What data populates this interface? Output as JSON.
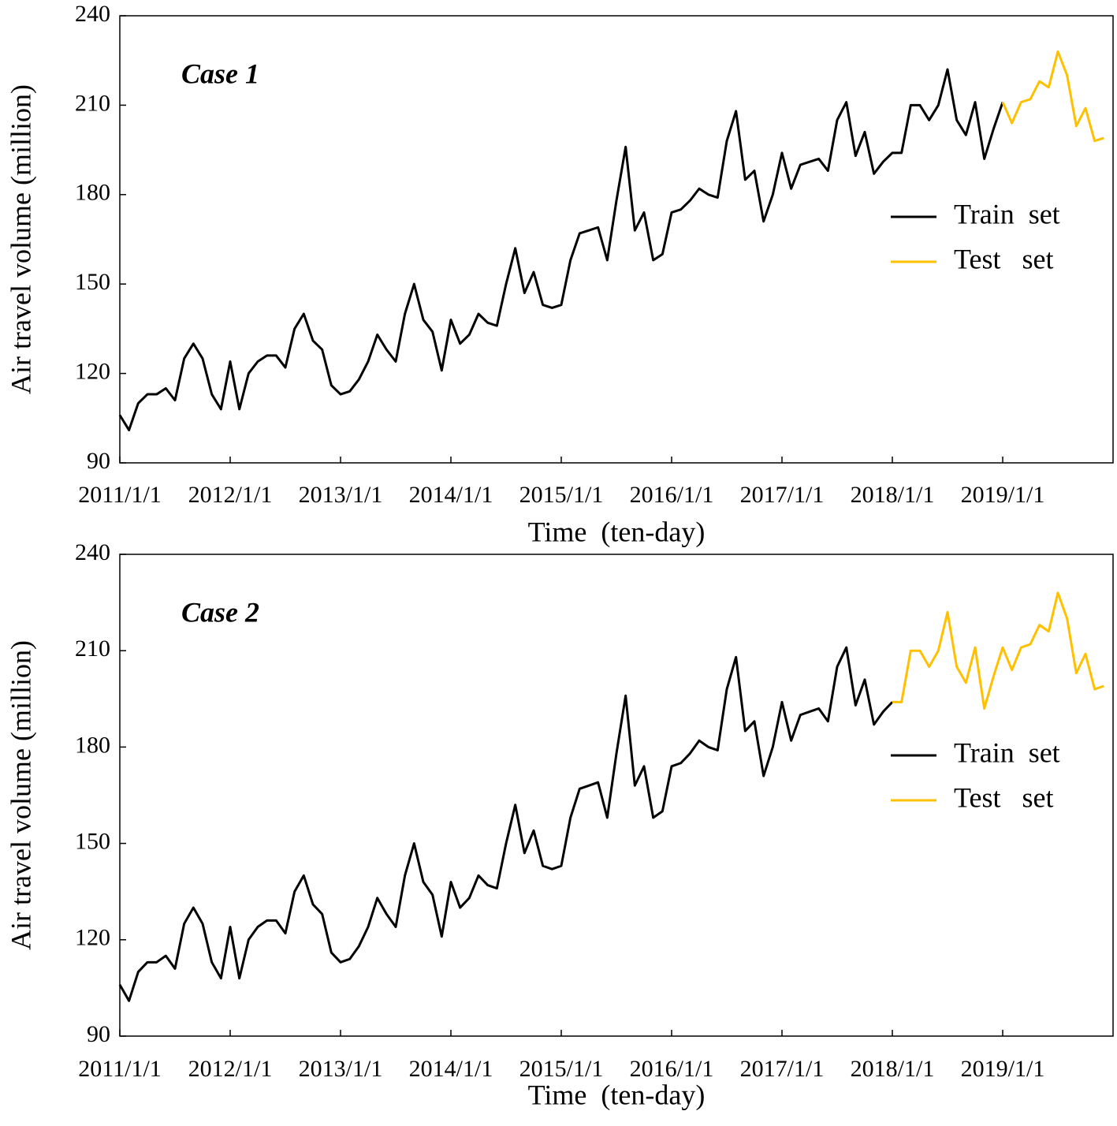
{
  "chart_data": [
    {
      "type": "line",
      "annotation": "Case 1",
      "xlabel": "Time  (ten-day)",
      "ylabel": "Air travel volume (million)",
      "xlim": [
        0,
        324
      ],
      "ylim": [
        90,
        240
      ],
      "yticks": [
        90,
        120,
        150,
        180,
        210,
        240
      ],
      "xticks": [
        {
          "value": 0,
          "label": "2011/1/1"
        },
        {
          "value": 36,
          "label": "2012/1/1"
        },
        {
          "value": 72,
          "label": "2013/1/1"
        },
        {
          "value": 108,
          "label": "2014/1/1"
        },
        {
          "value": 144,
          "label": "2015/1/1"
        },
        {
          "value": 180,
          "label": "2016/1/1"
        },
        {
          "value": 216,
          "label": "2017/1/1"
        },
        {
          "value": 252,
          "label": "2018/1/1"
        },
        {
          "value": 288,
          "label": "2019/1/1"
        }
      ],
      "legend": "right",
      "x": [
        0,
        3,
        6,
        9,
        12,
        15,
        18,
        21,
        24,
        27,
        30,
        33,
        36,
        39,
        42,
        45,
        48,
        51,
        54,
        57,
        60,
        63,
        66,
        69,
        72,
        75,
        78,
        81,
        84,
        87,
        90,
        93,
        96,
        99,
        102,
        105,
        108,
        111,
        114,
        117,
        120,
        123,
        126,
        129,
        132,
        135,
        138,
        141,
        144,
        147,
        150,
        153,
        156,
        159,
        162,
        165,
        168,
        171,
        174,
        177,
        180,
        183,
        186,
        189,
        192,
        195,
        198,
        201,
        204,
        207,
        210,
        213,
        216,
        219,
        222,
        225,
        228,
        231,
        234,
        237,
        240,
        243,
        246,
        249,
        252,
        255,
        258,
        261,
        264,
        267,
        270,
        273,
        276,
        279,
        282,
        285,
        288,
        291,
        294,
        297,
        300,
        303,
        306,
        309,
        312,
        315,
        318,
        321
      ],
      "series": [
        {
          "name": "Train  set",
          "color": "#000000",
          "values": [
            106,
            101,
            110,
            113,
            113,
            115,
            111,
            125,
            130,
            125,
            113,
            108,
            124,
            108,
            120,
            124,
            126,
            126,
            122,
            135,
            140,
            131,
            128,
            116,
            113,
            114,
            118,
            124,
            133,
            128,
            124,
            140,
            150,
            138,
            134,
            121,
            138,
            130,
            133,
            140,
            137,
            136,
            150,
            162,
            147,
            154,
            143,
            142,
            143,
            158,
            167,
            168,
            169,
            158,
            178,
            196,
            168,
            174,
            158,
            160,
            174,
            175,
            178,
            182,
            180,
            179,
            198,
            208,
            185,
            188,
            171,
            180,
            194,
            182,
            190,
            191,
            192,
            188,
            205,
            211,
            193,
            201,
            187,
            191,
            194,
            194,
            210,
            210,
            205,
            210,
            222,
            205,
            200,
            211,
            192,
            202,
            211,
            null,
            null,
            null,
            null,
            null,
            null,
            null,
            null,
            null,
            null,
            null
          ]
        },
        {
          "name": "Test   set",
          "color": "#ffc000",
          "values": [
            null,
            null,
            null,
            null,
            null,
            null,
            null,
            null,
            null,
            null,
            null,
            null,
            null,
            null,
            null,
            null,
            null,
            null,
            null,
            null,
            null,
            null,
            null,
            null,
            null,
            null,
            null,
            null,
            null,
            null,
            null,
            null,
            null,
            null,
            null,
            null,
            null,
            null,
            null,
            null,
            null,
            null,
            null,
            null,
            null,
            null,
            null,
            null,
            null,
            null,
            null,
            null,
            null,
            null,
            null,
            null,
            null,
            null,
            null,
            null,
            null,
            null,
            null,
            null,
            null,
            null,
            null,
            null,
            null,
            null,
            null,
            null,
            null,
            null,
            null,
            null,
            null,
            null,
            null,
            null,
            null,
            null,
            null,
            null,
            null,
            null,
            null,
            null,
            null,
            null,
            null,
            null,
            null,
            null,
            null,
            null,
            211,
            204,
            211,
            212,
            218,
            216,
            228,
            220,
            203,
            209,
            198,
            199
          ]
        }
      ]
    },
    {
      "type": "line",
      "annotation": "Case 2",
      "xlabel": "Time  (ten-day)",
      "ylabel": "Air travel volume (million)",
      "xlim": [
        0,
        324
      ],
      "ylim": [
        90,
        240
      ],
      "yticks": [
        90,
        120,
        150,
        180,
        210,
        240
      ],
      "xticks": [
        {
          "value": 0,
          "label": "2011/1/1"
        },
        {
          "value": 36,
          "label": "2012/1/1"
        },
        {
          "value": 72,
          "label": "2013/1/1"
        },
        {
          "value": 108,
          "label": "2014/1/1"
        },
        {
          "value": 144,
          "label": "2015/1/1"
        },
        {
          "value": 180,
          "label": "2016/1/1"
        },
        {
          "value": 216,
          "label": "2017/1/1"
        },
        {
          "value": 252,
          "label": "2018/1/1"
        },
        {
          "value": 288,
          "label": "2019/1/1"
        }
      ],
      "legend": "right",
      "x": [
        0,
        3,
        6,
        9,
        12,
        15,
        18,
        21,
        24,
        27,
        30,
        33,
        36,
        39,
        42,
        45,
        48,
        51,
        54,
        57,
        60,
        63,
        66,
        69,
        72,
        75,
        78,
        81,
        84,
        87,
        90,
        93,
        96,
        99,
        102,
        105,
        108,
        111,
        114,
        117,
        120,
        123,
        126,
        129,
        132,
        135,
        138,
        141,
        144,
        147,
        150,
        153,
        156,
        159,
        162,
        165,
        168,
        171,
        174,
        177,
        180,
        183,
        186,
        189,
        192,
        195,
        198,
        201,
        204,
        207,
        210,
        213,
        216,
        219,
        222,
        225,
        228,
        231,
        234,
        237,
        240,
        243,
        246,
        249,
        252,
        255,
        258,
        261,
        264,
        267,
        270,
        273,
        276,
        279,
        282,
        285,
        288,
        291,
        294,
        297,
        300,
        303,
        306,
        309,
        312,
        315,
        318,
        321
      ],
      "series": [
        {
          "name": "Train  set",
          "color": "#000000",
          "values": [
            106,
            101,
            110,
            113,
            113,
            115,
            111,
            125,
            130,
            125,
            113,
            108,
            124,
            108,
            120,
            124,
            126,
            126,
            122,
            135,
            140,
            131,
            128,
            116,
            113,
            114,
            118,
            124,
            133,
            128,
            124,
            140,
            150,
            138,
            134,
            121,
            138,
            130,
            133,
            140,
            137,
            136,
            150,
            162,
            147,
            154,
            143,
            142,
            143,
            158,
            167,
            168,
            169,
            158,
            178,
            196,
            168,
            174,
            158,
            160,
            174,
            175,
            178,
            182,
            180,
            179,
            198,
            208,
            185,
            188,
            171,
            180,
            194,
            182,
            190,
            191,
            192,
            188,
            205,
            211,
            193,
            201,
            187,
            191,
            194,
            null,
            null,
            null,
            null,
            null,
            null,
            null,
            null,
            null,
            null,
            null,
            null,
            null,
            null,
            null,
            null,
            null,
            null,
            null,
            null,
            null,
            null,
            null
          ]
        },
        {
          "name": "Test   set",
          "color": "#ffc000",
          "values": [
            null,
            null,
            null,
            null,
            null,
            null,
            null,
            null,
            null,
            null,
            null,
            null,
            null,
            null,
            null,
            null,
            null,
            null,
            null,
            null,
            null,
            null,
            null,
            null,
            null,
            null,
            null,
            null,
            null,
            null,
            null,
            null,
            null,
            null,
            null,
            null,
            null,
            null,
            null,
            null,
            null,
            null,
            null,
            null,
            null,
            null,
            null,
            null,
            null,
            null,
            null,
            null,
            null,
            null,
            null,
            null,
            null,
            null,
            null,
            null,
            null,
            null,
            null,
            null,
            null,
            null,
            null,
            null,
            null,
            null,
            null,
            null,
            null,
            null,
            null,
            null,
            null,
            null,
            null,
            null,
            null,
            null,
            null,
            null,
            194,
            194,
            210,
            210,
            205,
            210,
            222,
            205,
            200,
            211,
            192,
            202,
            211,
            204,
            211,
            212,
            218,
            216,
            228,
            220,
            203,
            209,
            198,
            199
          ]
        }
      ]
    }
  ]
}
